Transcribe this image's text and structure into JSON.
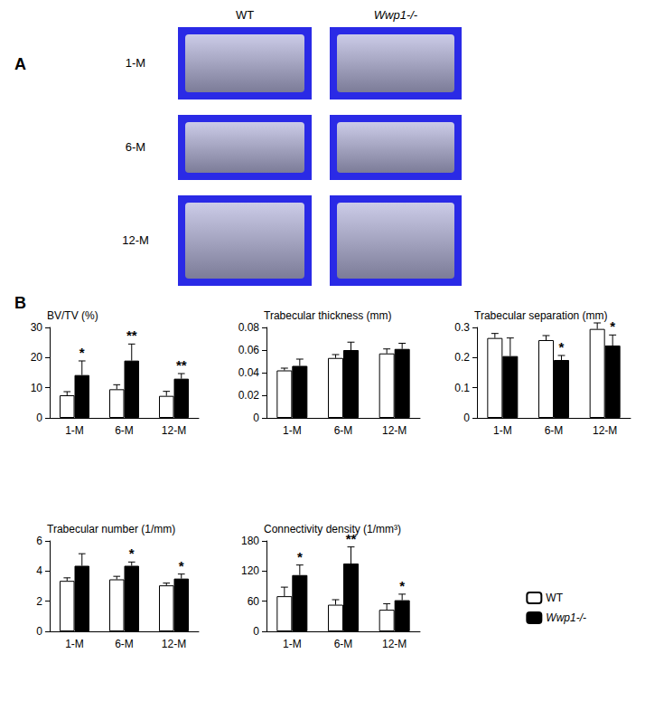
{
  "panel_a": {
    "label": "A",
    "columns": [
      "WT",
      "Wwp1-/-"
    ],
    "rows": [
      "1-M",
      "6-M",
      "12-M"
    ]
  },
  "panel_b": {
    "label": "B"
  },
  "chart_data": [
    {
      "type": "bar",
      "title": "BV/TV (%)",
      "categories": [
        "1-M",
        "6-M",
        "12-M"
      ],
      "ylim": [
        0,
        30
      ],
      "yticks": [
        0,
        10,
        20,
        30
      ],
      "grid": false,
      "series": [
        {
          "name": "WT",
          "color": "#ffffff",
          "values": [
            7.5,
            9.5,
            7.3
          ],
          "errors": [
            1.2,
            1.5,
            1.5
          ]
        },
        {
          "name": "Wwp1-/-",
          "color": "#000000",
          "values": [
            14.2,
            19,
            13
          ],
          "errors": [
            4.7,
            5.5,
            1.7
          ],
          "annotations": [
            "*",
            "**",
            "**"
          ]
        }
      ]
    },
    {
      "type": "bar",
      "title": "Trabecular thickness (mm)",
      "categories": [
        "1-M",
        "6-M",
        "12-M"
      ],
      "ylim": [
        0,
        0.08
      ],
      "yticks": [
        0,
        0.02,
        0.04,
        0.06,
        0.08
      ],
      "grid": false,
      "series": [
        {
          "name": "WT",
          "color": "#ffffff",
          "values": [
            0.042,
            0.053,
            0.057
          ],
          "errors": [
            0.002,
            0.003,
            0.004
          ]
        },
        {
          "name": "Wwp1-/-",
          "color": "#000000",
          "values": [
            0.046,
            0.06,
            0.061
          ],
          "errors": [
            0.006,
            0.007,
            0.005
          ]
        }
      ]
    },
    {
      "type": "bar",
      "title": "Trabecular separation (mm)",
      "categories": [
        "1-M",
        "6-M",
        "12-M"
      ],
      "ylim": [
        0,
        0.3
      ],
      "yticks": [
        0,
        0.1,
        0.2,
        0.3
      ],
      "grid": false,
      "series": [
        {
          "name": "WT",
          "color": "#ffffff",
          "values": [
            0.265,
            0.258,
            0.295
          ],
          "errors": [
            0.015,
            0.015,
            0.02
          ]
        },
        {
          "name": "Wwp1-/-",
          "color": "#000000",
          "values": [
            0.205,
            0.192,
            0.24
          ],
          "errors": [
            0.06,
            0.015,
            0.035
          ],
          "annotations": [
            null,
            "*",
            "*"
          ]
        }
      ]
    },
    {
      "type": "bar",
      "title": "Trabecular number (1/mm)",
      "categories": [
        "1-M",
        "6-M",
        "12-M"
      ],
      "ylim": [
        0,
        6
      ],
      "yticks": [
        0,
        2,
        4,
        6
      ],
      "grid": false,
      "series": [
        {
          "name": "WT",
          "color": "#ffffff",
          "values": [
            3.35,
            3.45,
            3.05
          ],
          "errors": [
            0.2,
            0.2,
            0.15
          ]
        },
        {
          "name": "Wwp1-/-",
          "color": "#000000",
          "values": [
            4.35,
            4.35,
            3.5
          ],
          "errors": [
            0.8,
            0.25,
            0.3
          ],
          "annotations": [
            null,
            "*",
            "*"
          ]
        }
      ]
    },
    {
      "type": "bar",
      "title": "Connectivity density (1/mm³)",
      "categories": [
        "1-M",
        "6-M",
        "12-M"
      ],
      "ylim": [
        0,
        180
      ],
      "yticks": [
        0,
        60,
        120,
        180
      ],
      "grid": false,
      "legend": "lower right",
      "series": [
        {
          "name": "WT",
          "color": "#ffffff",
          "values": [
            70,
            53,
            43
          ],
          "errors": [
            18,
            10,
            12
          ]
        },
        {
          "name": "Wwp1-/-",
          "color": "#000000",
          "values": [
            112,
            135,
            62
          ],
          "errors": [
            20,
            33,
            12
          ],
          "annotations": [
            "*",
            "**",
            "*"
          ]
        }
      ]
    }
  ]
}
